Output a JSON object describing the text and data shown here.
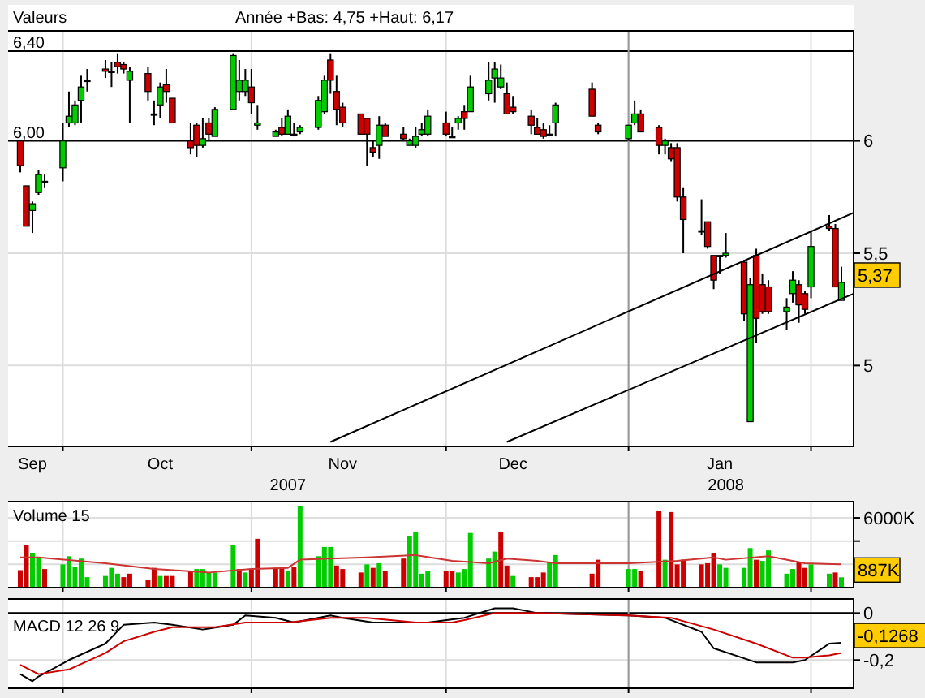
{
  "chart_data": [
    {
      "type": "candlestick",
      "title": "Valeurs",
      "subtitle": "Année +Bas: 4,75 +Haut: 6,17",
      "x": [
        "2007-09-24",
        "2007-09-25",
        "2007-09-26",
        "2007-09-27",
        "2007-09-28",
        "2007-10-01",
        "2007-10-02",
        "2007-10-03",
        "2007-10-04",
        "2007-10-05",
        "2007-10-08",
        "2007-10-09",
        "2007-10-10",
        "2007-10-11",
        "2007-10-12",
        "2007-10-15",
        "2007-10-16",
        "2007-10-17",
        "2007-10-18",
        "2007-10-19",
        "2007-10-22",
        "2007-10-23",
        "2007-10-24",
        "2007-10-25",
        "2007-10-26",
        "2007-10-29",
        "2007-10-30",
        "2007-10-31",
        "2007-11-01",
        "2007-11-02",
        "2007-11-05",
        "2007-11-06",
        "2007-11-07",
        "2007-11-08",
        "2007-11-09",
        "2007-11-12",
        "2007-11-13",
        "2007-11-14",
        "2007-11-15",
        "2007-11-16",
        "2007-11-19",
        "2007-11-20",
        "2007-11-21",
        "2007-11-22",
        "2007-11-23",
        "2007-11-26",
        "2007-11-27",
        "2007-11-28",
        "2007-11-29",
        "2007-11-30",
        "2007-12-03",
        "2007-12-04",
        "2007-12-05",
        "2007-12-06",
        "2007-12-07",
        "2007-12-10",
        "2007-12-11",
        "2007-12-12",
        "2007-12-13",
        "2007-12-14",
        "2007-12-17",
        "2007-12-18",
        "2007-12-19",
        "2007-12-20",
        "2007-12-21",
        "2007-12-27",
        "2007-12-28",
        "2008-01-02",
        "2008-01-03",
        "2008-01-04",
        "2008-01-07",
        "2008-01-08",
        "2008-01-09",
        "2008-01-10",
        "2008-01-11",
        "2008-01-14",
        "2008-01-15",
        "2008-01-16",
        "2008-01-17",
        "2008-01-18",
        "2008-01-21",
        "2008-01-22",
        "2008-01-23",
        "2008-01-24",
        "2008-01-25",
        "2008-01-28",
        "2008-01-29",
        "2008-01-30",
        "2008-01-31",
        "2008-02-01",
        "2008-02-04",
        "2008-02-05",
        "2008-02-06"
      ],
      "ohlc": [
        [
          6.0,
          6.0,
          5.86,
          5.89
        ],
        [
          5.8,
          5.8,
          5.62,
          5.62
        ],
        [
          5.69,
          5.73,
          5.59,
          5.72
        ],
        [
          5.77,
          5.87,
          5.76,
          5.85
        ],
        [
          5.82,
          5.85,
          5.79,
          5.82
        ],
        [
          5.88,
          6.08,
          5.82,
          6.0
        ],
        [
          6.08,
          6.22,
          6.06,
          6.11
        ],
        [
          6.08,
          6.18,
          6.07,
          6.16
        ],
        [
          6.18,
          6.29,
          6.08,
          6.24
        ],
        [
          6.27,
          6.32,
          6.22,
          6.27
        ],
        [
          6.32,
          6.36,
          6.28,
          6.31
        ],
        [
          6.31,
          6.35,
          6.24,
          6.31
        ],
        [
          6.35,
          6.39,
          6.3,
          6.33
        ],
        [
          6.34,
          6.35,
          6.3,
          6.32
        ],
        [
          6.27,
          6.33,
          6.08,
          6.31
        ],
        [
          6.3,
          6.33,
          6.18,
          6.22
        ],
        [
          6.12,
          6.18,
          6.07,
          6.12
        ],
        [
          6.16,
          6.26,
          6.1,
          6.24
        ],
        [
          6.25,
          6.32,
          6.17,
          6.22
        ],
        [
          6.19,
          6.19,
          6.08,
          6.08
        ],
        [
          6.0,
          6.08,
          5.94,
          5.97
        ],
        [
          6.07,
          6.08,
          5.93,
          5.98
        ],
        [
          5.98,
          6.1,
          5.97,
          6.01
        ],
        [
          6.08,
          6.1,
          6.0,
          6.03
        ],
        [
          6.02,
          6.15,
          6.02,
          6.14
        ],
        [
          6.14,
          6.39,
          6.14,
          6.38
        ],
        [
          6.22,
          6.36,
          6.18,
          6.27
        ],
        [
          6.22,
          6.32,
          6.2,
          6.27
        ],
        [
          6.24,
          6.32,
          6.12,
          6.17
        ],
        [
          6.07,
          6.16,
          6.05,
          6.08
        ],
        [
          6.02,
          6.05,
          6.02,
          6.04
        ],
        [
          6.06,
          6.1,
          6.02,
          6.03
        ],
        [
          6.03,
          6.14,
          6.03,
          6.11
        ],
        [
          6.03,
          6.08,
          6.02,
          6.03
        ],
        [
          6.04,
          6.07,
          6.03,
          6.06
        ],
        [
          6.06,
          6.2,
          6.05,
          6.18
        ],
        [
          6.13,
          6.29,
          6.12,
          6.27
        ],
        [
          6.36,
          6.39,
          6.21,
          6.27
        ],
        [
          6.22,
          6.29,
          6.07,
          6.14
        ],
        [
          6.15,
          6.17,
          6.06,
          6.08
        ],
        [
          6.12,
          6.12,
          6.03,
          6.03
        ],
        [
          6.1,
          6.1,
          5.89,
          6.03
        ],
        [
          5.97,
          6.0,
          5.93,
          5.95
        ],
        [
          5.98,
          6.11,
          5.92,
          6.07
        ],
        [
          6.07,
          6.08,
          6.02,
          6.02
        ],
        [
          6.03,
          6.06,
          6.0,
          6.01
        ],
        [
          5.98,
          6.01,
          5.98,
          6.0
        ],
        [
          5.98,
          6.06,
          5.97,
          6.02
        ],
        [
          6.03,
          6.08,
          6.02,
          6.05
        ],
        [
          6.03,
          6.14,
          6.02,
          6.11
        ],
        [
          6.08,
          6.13,
          6.02,
          6.03
        ],
        [
          6.02,
          6.06,
          6.02,
          6.02
        ],
        [
          6.08,
          6.11,
          6.05,
          6.1
        ],
        [
          6.13,
          6.16,
          6.05,
          6.1
        ],
        [
          6.13,
          6.29,
          6.13,
          6.24
        ],
        [
          6.21,
          6.35,
          6.18,
          6.27
        ],
        [
          6.28,
          6.35,
          6.17,
          6.32
        ],
        [
          6.24,
          6.34,
          6.23,
          6.28
        ],
        [
          6.21,
          6.26,
          6.12,
          6.12
        ],
        [
          6.15,
          6.2,
          6.12,
          6.13
        ],
        [
          6.11,
          6.14,
          6.03,
          6.07
        ],
        [
          6.06,
          6.1,
          6.03,
          6.03
        ],
        [
          6.05,
          6.08,
          6.01,
          6.02
        ],
        [
          6.03,
          6.07,
          6.02,
          6.03
        ],
        [
          6.08,
          6.17,
          6.02,
          6.16
        ],
        [
          6.23,
          6.26,
          6.11,
          6.11
        ],
        [
          6.07,
          6.08,
          6.03,
          6.04
        ],
        [
          6.01,
          6.07,
          6.0,
          6.07
        ],
        [
          6.08,
          6.18,
          6.07,
          6.12
        ],
        [
          6.12,
          6.14,
          6.04,
          6.04
        ],
        [
          6.06,
          6.07,
          5.94,
          5.98
        ],
        [
          5.98,
          6.01,
          5.94,
          6.0
        ],
        [
          5.97,
          5.99,
          5.91,
          5.92
        ],
        [
          5.97,
          5.99,
          5.73,
          5.75
        ],
        [
          5.75,
          5.79,
          5.5,
          5.65
        ],
        [
          5.6,
          5.74,
          5.58,
          5.6
        ],
        [
          5.64,
          5.64,
          5.52,
          5.53
        ],
        [
          5.49,
          5.49,
          5.34,
          5.38
        ],
        [
          5.49,
          5.49,
          5.41,
          5.49
        ],
        [
          5.49,
          5.59,
          5.48,
          5.5
        ],
        [
          5.46,
          5.47,
          5.2,
          5.23
        ],
        [
          4.75,
          5.39,
          4.75,
          5.36
        ],
        [
          5.49,
          5.52,
          5.1,
          5.21
        ],
        [
          5.36,
          5.41,
          5.23,
          5.24
        ],
        [
          5.35,
          5.38,
          5.23,
          5.24
        ],
        [
          5.24,
          5.3,
          5.16,
          5.26
        ],
        [
          5.32,
          5.42,
          5.28,
          5.38
        ],
        [
          5.36,
          5.38,
          5.19,
          5.27
        ],
        [
          5.32,
          5.33,
          5.23,
          5.25
        ],
        [
          5.35,
          5.6,
          5.3,
          5.53
        ],
        [
          5.62,
          5.67,
          5.6,
          5.61
        ],
        [
          5.61,
          5.63,
          5.35,
          5.35
        ],
        [
          5.29,
          5.44,
          5.29,
          5.37
        ]
      ],
      "colors": [
        "#cc0000",
        "#cc0000",
        "#00cc00",
        "#00cc00",
        "#000000",
        "#00cc00",
        "#00cc00",
        "#00cc00",
        "#00cc00",
        "#000000",
        "#cc0000",
        "#000000",
        "#cc0000",
        "#cc0000",
        "#00cc00",
        "#cc0000",
        "#000000",
        "#00cc00",
        "#cc0000",
        "#cc0000",
        "#cc0000",
        "#cc0000",
        "#00cc00",
        "#cc0000",
        "#00cc00",
        "#00cc00",
        "#00cc00",
        "#00cc00",
        "#cc0000",
        "#00cc00",
        "#00cc00",
        "#cc0000",
        "#00cc00",
        "#000000",
        "#00cc00",
        "#00cc00",
        "#00cc00",
        "#cc0000",
        "#cc0000",
        "#cc0000",
        "#cc0000",
        "#cc0000",
        "#cc0000",
        "#00cc00",
        "#cc0000",
        "#cc0000",
        "#00cc00",
        "#00cc00",
        "#00cc00",
        "#00cc00",
        "#cc0000",
        "#000000",
        "#00cc00",
        "#cc0000",
        "#00cc00",
        "#00cc00",
        "#00cc00",
        "#00cc00",
        "#cc0000",
        "#cc0000",
        "#cc0000",
        "#cc0000",
        "#cc0000",
        "#000000",
        "#00cc00",
        "#cc0000",
        "#cc0000",
        "#00cc00",
        "#00cc00",
        "#cc0000",
        "#cc0000",
        "#00cc00",
        "#cc0000",
        "#cc0000",
        "#cc0000",
        "#000000",
        "#cc0000",
        "#cc0000",
        "#000000",
        "#00cc00",
        "#cc0000",
        "#00cc00",
        "#cc0000",
        "#cc0000",
        "#cc0000",
        "#00cc00",
        "#00cc00",
        "#cc0000",
        "#cc0000",
        "#00cc00",
        "#cc0000",
        "#cc0000",
        "#00cc00"
      ],
      "series": [
        {
          "type": "line",
          "x": [
            "2007-11-14",
            "2008-02-08"
          ],
          "values": [
            4.66,
            5.68
          ],
          "color": "#000000"
        },
        {
          "type": "line",
          "x": [
            "2007-12-13",
            "2008-02-08"
          ],
          "values": [
            4.66,
            5.32
          ],
          "color": "#000000"
        }
      ],
      "xlim": [
        "2007-09-22",
        "2008-02-08"
      ],
      "xticks": [
        {
          "value": "2007-09-26",
          "label": "Sep"
        },
        {
          "value": "2007-10-01",
          "label": null
        },
        {
          "value": "2007-10-17",
          "label": "Oct"
        },
        {
          "value": "2007-11-01",
          "label": null
        },
        {
          "value": "2007-11-16",
          "label": "Nov"
        },
        {
          "value": "2007-12-03",
          "label": null
        },
        {
          "value": "2007-12-14",
          "label": "Dec"
        },
        {
          "value": "2008-01-02",
          "label": null
        },
        {
          "value": "2008-01-17",
          "label": "Jan"
        },
        {
          "value": "2008-02-01",
          "label": null
        }
      ],
      "x2lim": [
        "2007-09-22",
        "2008-02-08"
      ],
      "x2ticks": [
        {
          "value": "2007-11-07",
          "label": "2007"
        },
        {
          "value": "2008-01-18",
          "label": "2008"
        }
      ],
      "ylim": [
        4.64,
        6.49
      ],
      "yticks": [
        5,
        {
          "value": 5.5,
          "label": "5,5"
        },
        6
      ],
      "grid": true,
      "ref_lines": [
        {
          "axis": "y",
          "value": 6.4,
          "label": "6,40",
          "color": "#000000"
        },
        {
          "axis": "y",
          "value": 6,
          "label": "6,00",
          "color": "#000000"
        },
        {
          "axis": "x",
          "value": "2008-01-02",
          "color": "#999999"
        }
      ],
      "annotations": [
        {
          "text": "5,37",
          "x": "2008-02-06",
          "y": 5.37
        }
      ]
    },
    {
      "type": "bar",
      "title": "Volume 15",
      "x": [
        "2007-09-24",
        "2007-09-25",
        "2007-09-26",
        "2007-09-27",
        "2007-09-28",
        "2007-10-01",
        "2007-10-02",
        "2007-10-03",
        "2007-10-04",
        "2007-10-05",
        "2007-10-08",
        "2007-10-09",
        "2007-10-10",
        "2007-10-11",
        "2007-10-12",
        "2007-10-15",
        "2007-10-16",
        "2007-10-17",
        "2007-10-18",
        "2007-10-19",
        "2007-10-22",
        "2007-10-23",
        "2007-10-24",
        "2007-10-25",
        "2007-10-26",
        "2007-10-29",
        "2007-10-30",
        "2007-10-31",
        "2007-11-01",
        "2007-11-02",
        "2007-11-05",
        "2007-11-06",
        "2007-11-07",
        "2007-11-08",
        "2007-11-09",
        "2007-11-12",
        "2007-11-13",
        "2007-11-14",
        "2007-11-15",
        "2007-11-16",
        "2007-11-19",
        "2007-11-20",
        "2007-11-21",
        "2007-11-22",
        "2007-11-23",
        "2007-11-26",
        "2007-11-27",
        "2007-11-28",
        "2007-11-29",
        "2007-11-30",
        "2007-12-03",
        "2007-12-04",
        "2007-12-05",
        "2007-12-06",
        "2007-12-07",
        "2007-12-10",
        "2007-12-11",
        "2007-12-12",
        "2007-12-13",
        "2007-12-14",
        "2007-12-17",
        "2007-12-18",
        "2007-12-19",
        "2007-12-20",
        "2007-12-21",
        "2007-12-27",
        "2007-12-28",
        "2008-01-02",
        "2008-01-03",
        "2008-01-04",
        "2008-01-07",
        "2008-01-08",
        "2008-01-09",
        "2008-01-10",
        "2008-01-11",
        "2008-01-14",
        "2008-01-15",
        "2008-01-16",
        "2008-01-17",
        "2008-01-18",
        "2008-01-21",
        "2008-01-22",
        "2008-01-23",
        "2008-01-24",
        "2008-01-25",
        "2008-01-28",
        "2008-01-29",
        "2008-01-30",
        "2008-01-31",
        "2008-02-01",
        "2008-02-04",
        "2008-02-05",
        "2008-02-06"
      ],
      "series": [
        {
          "type": "bar",
          "values": [
            1500,
            3700,
            3000,
            2600,
            1600,
            2000,
            2700,
            1800,
            2500,
            900,
            1000,
            1700,
            1200,
            900,
            1200,
            700,
            1700,
            1000,
            1000,
            1000,
            1400,
            1600,
            1600,
            1300,
            1300,
            3700,
            1600,
            1300,
            1600,
            4200,
            1700,
            1700,
            1400,
            1800,
            7000,
            2700,
            3500,
            3500,
            1900,
            1600,
            1300,
            2000,
            1700,
            2100,
            1400,
            2500,
            4400,
            4800,
            1200,
            1400,
            1400,
            1400,
            1300,
            1600,
            4700,
            2500,
            3100,
            4800,
            1900,
            1000,
            900,
            900,
            1300,
            2200,
            2800,
            1200,
            2400,
            1600,
            1600,
            1400,
            6600,
            2400,
            6500,
            2000,
            2400,
            2000,
            2100,
            3000,
            2000,
            1700,
            1700,
            3400,
            2400,
            2300,
            3200,
            1200,
            1600,
            2200,
            1700,
            2000,
            1200,
            1300,
            887
          ],
          "colors": [
            "#cc0000",
            "#cc0000",
            "#00cc00",
            "#00cc00",
            "#cc0000",
            "#00cc00",
            "#00cc00",
            "#00cc00",
            "#00cc00",
            "#00cc00",
            "#00cc00",
            "#00cc00",
            "#00cc00",
            "#cc0000",
            "#cc0000",
            "#cc0000",
            "#cc0000",
            "#00cc00",
            "#cc0000",
            "#cc0000",
            "#cc0000",
            "#00cc00",
            "#00cc00",
            "#00cc00",
            "#00cc00",
            "#00cc00",
            "#cc0000",
            "#00cc00",
            "#cc0000",
            "#cc0000",
            "#cc0000",
            "#cc0000",
            "#00cc00",
            "#cc0000",
            "#00cc00",
            "#00cc00",
            "#00cc00",
            "#00cc00",
            "#cc0000",
            "#cc0000",
            "#cc0000",
            "#00cc00",
            "#cc0000",
            "#00cc00",
            "#cc0000",
            "#cc0000",
            "#00cc00",
            "#00cc00",
            "#00cc00",
            "#00cc00",
            "#cc0000",
            "#cc0000",
            "#00cc00",
            "#00cc00",
            "#00cc00",
            "#00cc00",
            "#00cc00",
            "#cc0000",
            "#cc0000",
            "#00cc00",
            "#cc0000",
            "#cc0000",
            "#cc0000",
            "#00cc00",
            "#00cc00",
            "#cc0000",
            "#cc0000",
            "#00cc00",
            "#00cc00",
            "#cc0000",
            "#cc0000",
            "#00cc00",
            "#cc0000",
            "#cc0000",
            "#cc0000",
            "#cc0000",
            "#cc0000",
            "#cc0000",
            "#00cc00",
            "#00cc00",
            "#00cc00",
            "#00cc00",
            "#cc0000",
            "#00cc00",
            "#00cc00",
            "#00cc00",
            "#00cc00",
            "#cc0000",
            "#cc0000",
            "#00cc00",
            "#00cc00",
            "#cc0000",
            "#00cc00"
          ]
        },
        {
          "type": "line",
          "x": [
            "2007-09-24",
            "2007-09-27",
            "2007-10-08",
            "2007-10-16",
            "2007-10-25",
            "2007-11-01",
            "2007-11-07",
            "2007-11-09",
            "2007-11-20",
            "2007-11-28",
            "2007-12-04",
            "2007-12-10",
            "2007-12-13",
            "2007-12-18",
            "2007-12-21",
            "2008-01-02",
            "2008-01-10",
            "2008-01-16",
            "2008-01-18",
            "2008-01-25",
            "2008-01-31",
            "2008-02-06"
          ],
          "values": [
            2600,
            2600,
            2100,
            1600,
            1300,
            1600,
            1700,
            2400,
            2600,
            2800,
            2300,
            2100,
            2500,
            2300,
            2100,
            2100,
            2300,
            2600,
            2400,
            2700,
            2100,
            2000
          ],
          "color": "#cc3333"
        }
      ],
      "xlim": [
        "2007-09-22",
        "2008-02-08"
      ],
      "xticks": [
        {
          "value": "2007-10-01",
          "label": null
        },
        {
          "value": "2007-11-01",
          "label": null
        },
        {
          "value": "2007-12-03",
          "label": null
        },
        {
          "value": "2008-01-02",
          "label": null
        },
        {
          "value": "2008-02-01",
          "label": null
        }
      ],
      "ylim": [
        0,
        7400
      ],
      "yticks": [
        {
          "value": 6000,
          "label": "6000K"
        },
        {
          "value": 4000,
          "label": null
        },
        {
          "value": 2000,
          "label": null
        }
      ],
      "tick_labels": "y",
      "grid": true,
      "ref_lines": [
        {
          "axis": "x",
          "value": "2008-01-02",
          "color": "#999999"
        }
      ],
      "annotations": [
        {
          "text": "887K",
          "x": "2008-02-06",
          "y": 887
        }
      ]
    },
    {
      "type": "line",
      "title": "MACD 12 26 9",
      "series": [
        {
          "x": [
            "2007-09-24",
            "2007-09-26",
            "2007-09-27",
            "2007-10-02",
            "2007-10-08",
            "2007-10-11",
            "2007-10-16",
            "2007-10-19",
            "2007-10-24",
            "2007-10-29",
            "2007-10-31",
            "2007-11-05",
            "2007-11-08",
            "2007-11-14",
            "2007-11-16",
            "2007-11-21",
            "2007-11-28",
            "2007-11-30",
            "2007-12-06",
            "2007-12-11",
            "2007-12-14",
            "2007-12-18",
            "2008-01-02",
            "2008-01-08",
            "2008-01-14",
            "2008-01-16",
            "2008-01-23",
            "2008-01-29",
            "2008-01-31",
            "2008-02-04",
            "2008-02-06"
          ],
          "values": [
            -0.26,
            -0.29,
            -0.27,
            -0.2,
            -0.13,
            -0.05,
            -0.04,
            -0.05,
            -0.07,
            -0.05,
            -0.01,
            -0.02,
            -0.04,
            -0.01,
            -0.02,
            -0.04,
            -0.04,
            -0.04,
            -0.02,
            0.02,
            0.02,
            0,
            -0.01,
            -0.02,
            -0.08,
            -0.15,
            -0.21,
            -0.21,
            -0.2,
            -0.13,
            -0.1268
          ],
          "color": "#000000"
        },
        {
          "x": [
            "2007-09-24",
            "2007-09-27",
            "2007-10-02",
            "2007-10-08",
            "2007-10-11",
            "2007-10-16",
            "2007-10-19",
            "2007-10-26",
            "2007-10-31",
            "2007-11-07",
            "2007-11-14",
            "2007-11-20",
            "2007-11-28",
            "2007-12-04",
            "2007-12-06",
            "2007-12-11",
            "2007-12-18",
            "2008-01-02",
            "2008-01-09",
            "2008-01-16",
            "2008-01-23",
            "2008-01-29",
            "2008-01-31",
            "2008-02-04",
            "2008-02-06"
          ],
          "values": [
            -0.22,
            -0.26,
            -0.24,
            -0.17,
            -0.12,
            -0.08,
            -0.06,
            -0.06,
            -0.04,
            -0.04,
            -0.02,
            -0.02,
            -0.04,
            -0.04,
            -0.03,
            0,
            0,
            -0.01,
            -0.02,
            -0.07,
            -0.13,
            -0.19,
            -0.19,
            -0.18,
            -0.17
          ],
          "color": "#cc0000"
        }
      ],
      "xlim": [
        "2007-09-22",
        "2008-02-08"
      ],
      "xticks": [
        {
          "value": "2007-10-01",
          "label": null
        },
        {
          "value": "2007-11-01",
          "label": null
        },
        {
          "value": "2007-12-03",
          "label": null
        },
        {
          "value": "2008-01-02",
          "label": null
        },
        {
          "value": "2008-02-01",
          "label": null
        }
      ],
      "ylim": [
        -0.32,
        0.06
      ],
      "yticks": [
        0,
        {
          "value": -0.2,
          "label": "-0,2"
        }
      ],
      "tick_labels": "y",
      "grid": true,
      "ref_lines": [
        {
          "axis": "y",
          "value": 0,
          "color": "#000000"
        },
        {
          "axis": "x",
          "value": "2008-01-02",
          "color": "#999999"
        }
      ],
      "annotations": [
        {
          "text": "-0,1268",
          "x": "2008-02-06",
          "y": -0.1268
        }
      ]
    }
  ]
}
